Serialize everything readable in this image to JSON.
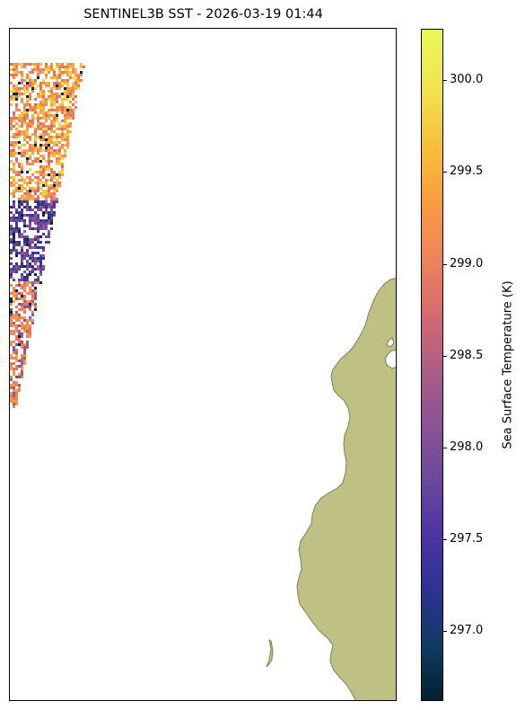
{
  "title": "SENTINEL3B SST - 2026-03-19 01:44",
  "colorbar": {
    "label": "Sea Surface Temperature (K)",
    "min": 296.62,
    "max": 300.28,
    "ticks": [
      "297.0",
      "297.5",
      "298.0",
      "298.5",
      "299.0",
      "299.5",
      "300.0"
    ],
    "colormap": [
      "#03212e",
      "#0f3b64",
      "#2d3393",
      "#4d35a2",
      "#6d4a9c",
      "#8e5394",
      "#b05e83",
      "#d86d6e",
      "#f08658",
      "#fa9e3f",
      "#f7c23c",
      "#f0e54e",
      "#e8fa5b"
    ]
  },
  "colors": {
    "land": "#bfc084",
    "land_edge": "#808050",
    "background": "#ffffff"
  }
}
